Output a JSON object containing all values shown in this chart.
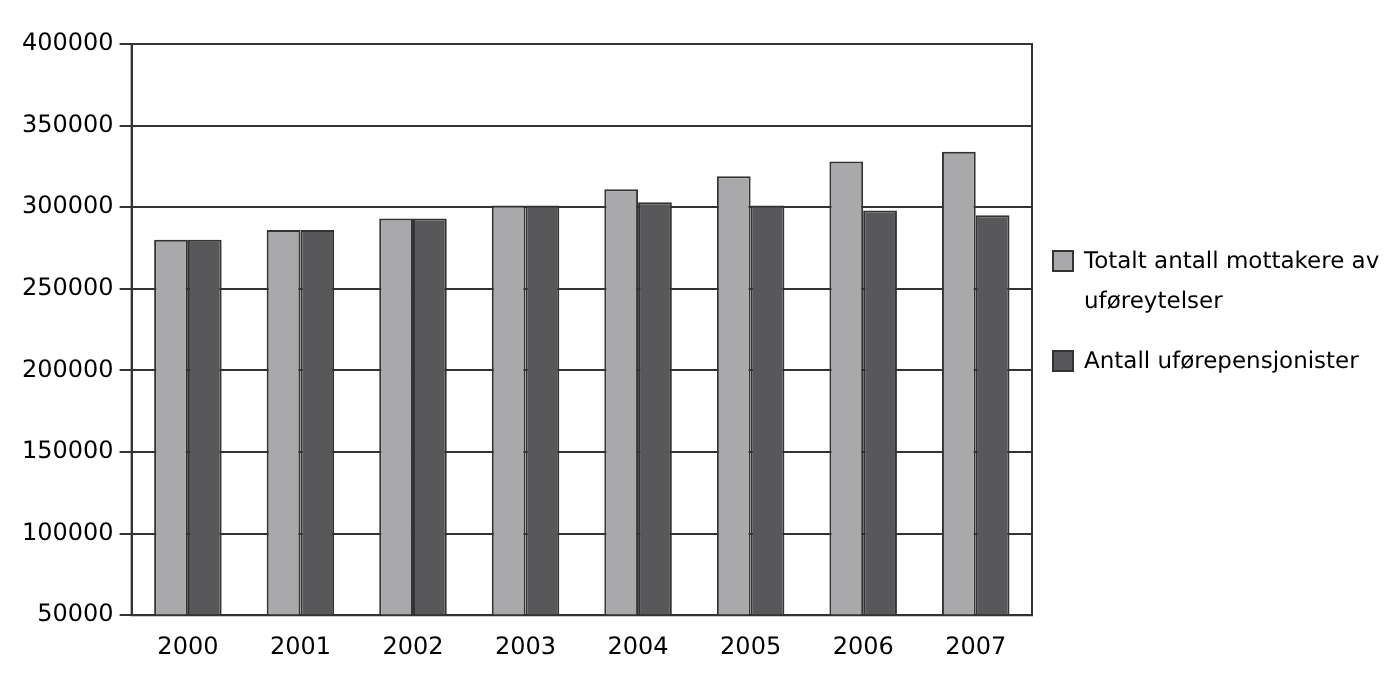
{
  "chart_data": {
    "type": "bar",
    "categories": [
      "2000",
      "2001",
      "2002",
      "2003",
      "2004",
      "2005",
      "2006",
      "2007"
    ],
    "series": [
      {
        "name": "Totalt antall mottakere av uføreytelser",
        "color": "#a9a9ab",
        "values": [
          280000,
          286000,
          293000,
          301000,
          311000,
          319000,
          328000,
          334000
        ]
      },
      {
        "name": "Antall uførepensjonister",
        "color": "#58585a",
        "values": [
          280000,
          286000,
          293000,
          301000,
          303000,
          301000,
          298000,
          295000
        ]
      }
    ],
    "ylim": [
      50000,
      400000
    ],
    "yticks": [
      50000,
      100000,
      150000,
      200000,
      250000,
      300000,
      350000,
      400000
    ],
    "grid": "y",
    "legend": "right"
  }
}
